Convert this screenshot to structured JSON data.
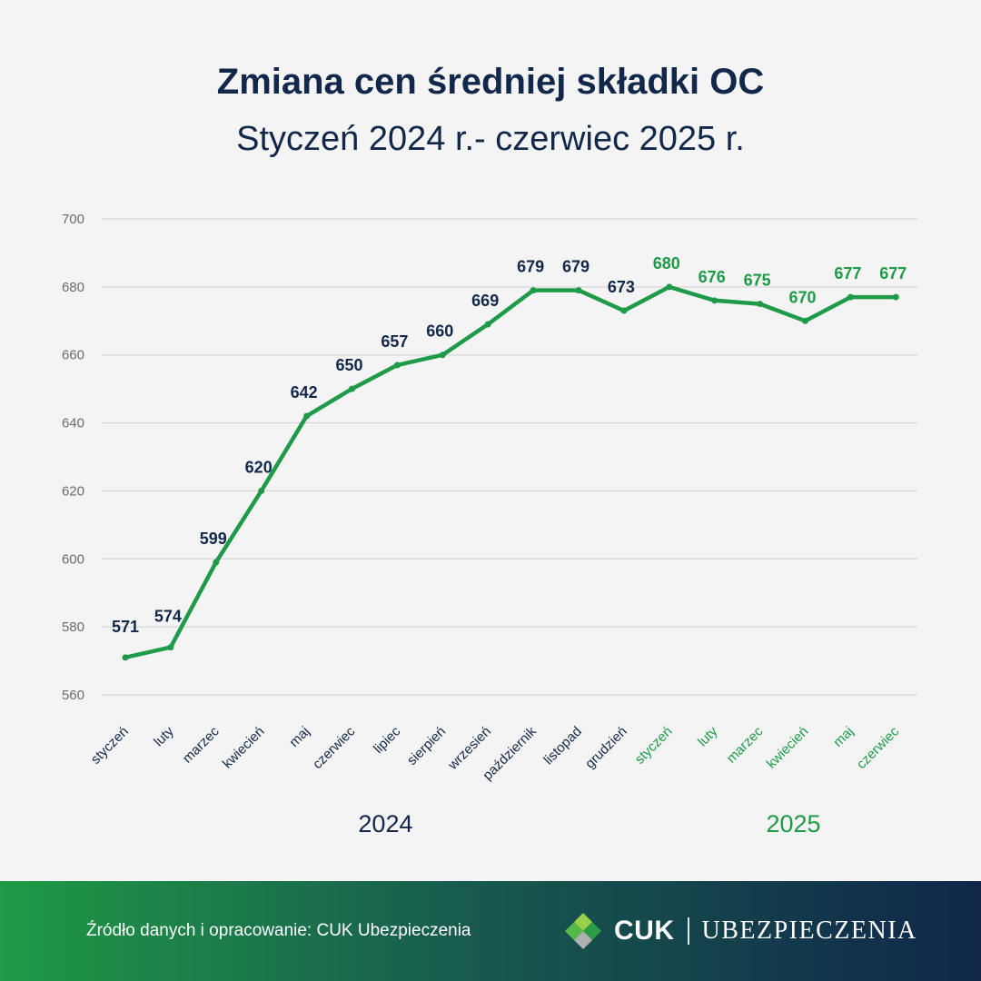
{
  "header": {
    "title": "Zmiana cen średniej składki OC",
    "subtitle": "Styczeń 2024 r.- czerwiec 2025 r."
  },
  "colors": {
    "navy": "#12284a",
    "green": "#1e9a48",
    "grid": "#d6d6d6",
    "axis_text": "#6b6b6b"
  },
  "chart_data": {
    "type": "line",
    "title": "Zmiana cen średniej składki OC",
    "subtitle": "Styczeń 2024 r.- czerwiec 2025 r.",
    "categories": [
      "styczeń",
      "luty",
      "marzec",
      "kwiecień",
      "maj",
      "czerwiec",
      "lipiec",
      "sierpień",
      "wrzesień",
      "październik",
      "listopad",
      "grudzień",
      "styczeń",
      "luty",
      "marzec",
      "kwiecień",
      "maj",
      "czerwiec"
    ],
    "years": [
      2024,
      2024,
      2024,
      2024,
      2024,
      2024,
      2024,
      2024,
      2024,
      2024,
      2024,
      2024,
      2025,
      2025,
      2025,
      2025,
      2025,
      2025
    ],
    "year_groups": [
      {
        "label": "2024",
        "color": "#12284a"
      },
      {
        "label": "2025",
        "color": "#1e9a48"
      }
    ],
    "series": [
      {
        "values": [
          571,
          574,
          599,
          620,
          642,
          650,
          657,
          660,
          669,
          679,
          679,
          673,
          680,
          676,
          675,
          670,
          677,
          677
        ],
        "color": "#1e9a48"
      }
    ],
    "yticks": [
      560,
      580,
      600,
      620,
      640,
      660,
      680,
      700
    ],
    "ylim": [
      560,
      700
    ],
    "grid": true
  },
  "footer": {
    "source": "Źródło danych i opracowanie: CUK Ubezpieczenia",
    "logo_brand": "CUK",
    "logo_sub": "UBEZPIECZENIA"
  }
}
